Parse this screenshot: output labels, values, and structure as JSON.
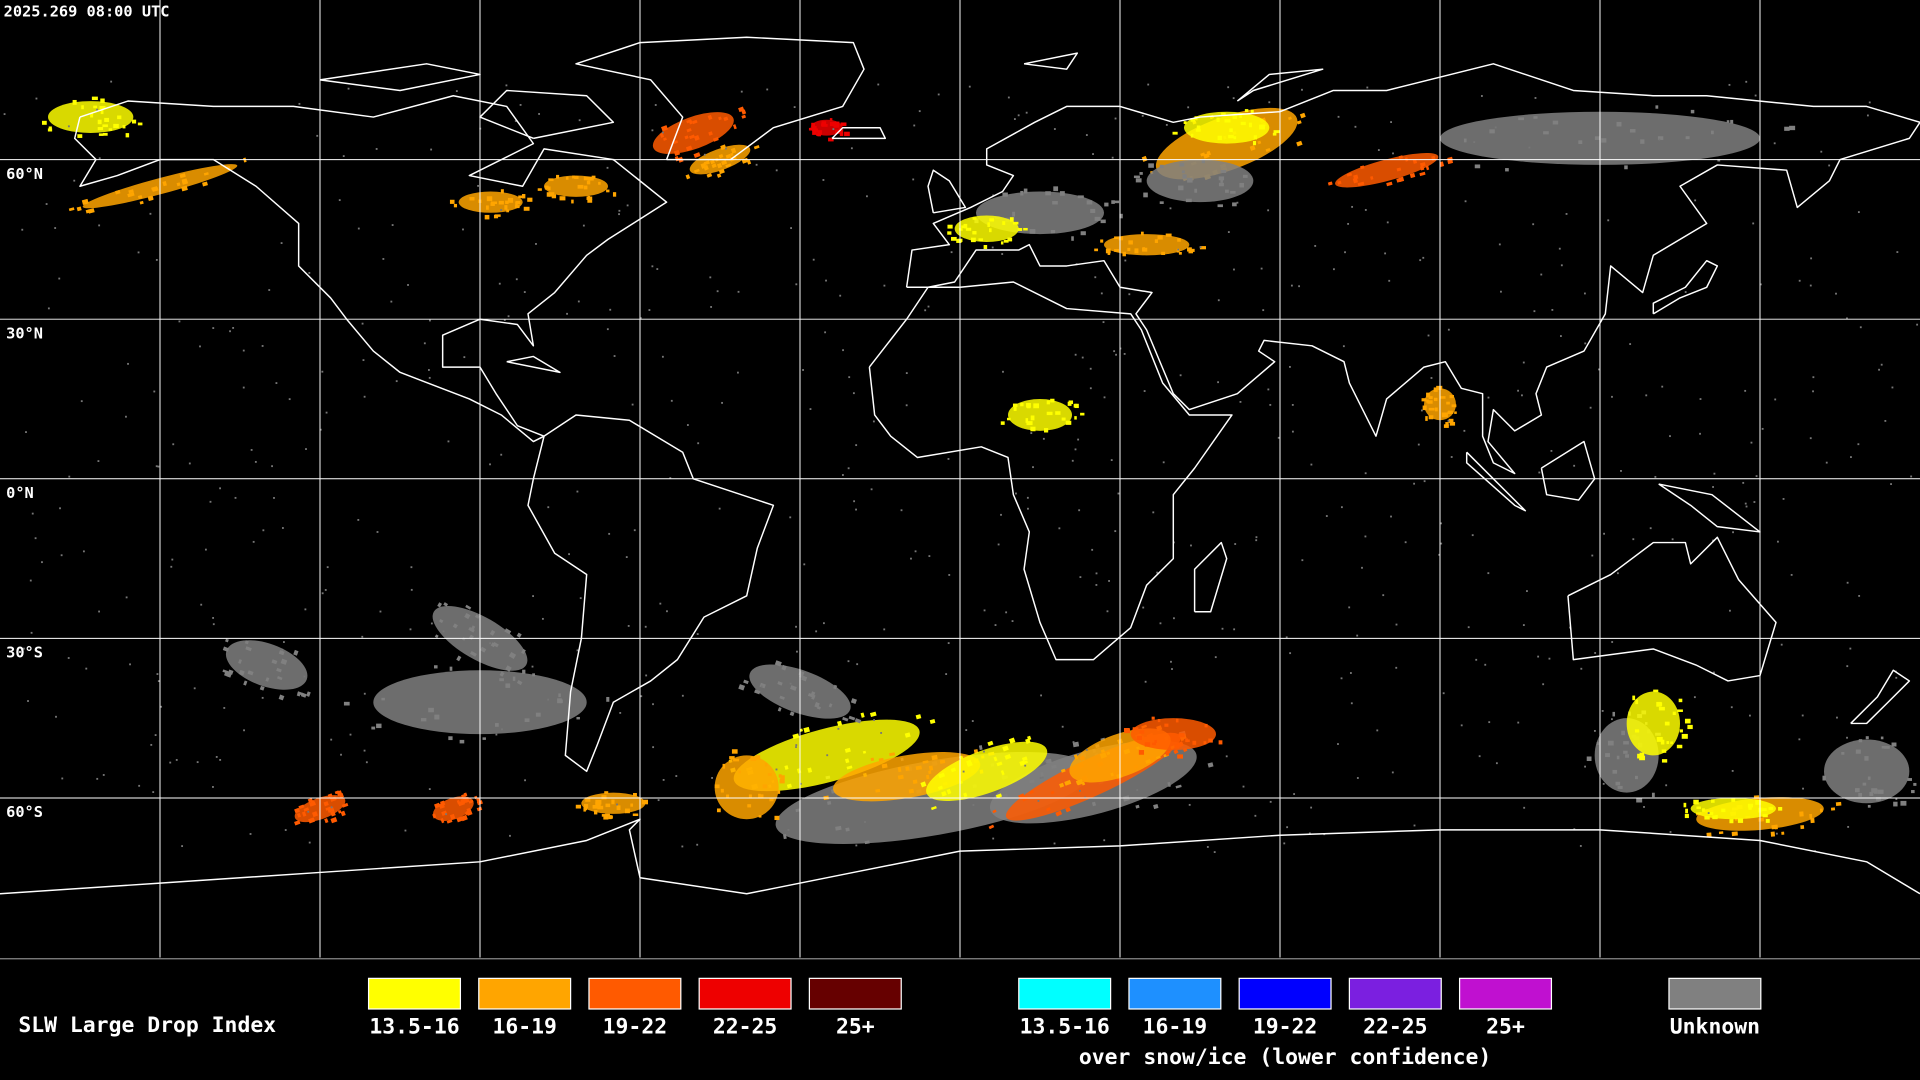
{
  "header": {
    "timestamp": "2025.269 08:00 UTC"
  },
  "map": {
    "latitude_labels": [
      "60°N",
      "30°N",
      "0°N",
      "30°S",
      "60°S"
    ]
  },
  "legend": {
    "title": "SLW Large Drop Index",
    "groups": [
      {
        "items": [
          {
            "label": "13.5-16",
            "color": "#ffff00"
          },
          {
            "label": "16-19",
            "color": "#ffa500"
          },
          {
            "label": "19-22",
            "color": "#ff5a00"
          },
          {
            "label": "22-25",
            "color": "#ee0000"
          },
          {
            "label": "25+",
            "color": "#660000"
          }
        ]
      },
      {
        "items": [
          {
            "label": "13.5-16",
            "color": "#00ffff"
          },
          {
            "label": "16-19",
            "color": "#1e90ff"
          },
          {
            "label": "19-22",
            "color": "#0000ff"
          },
          {
            "label": "22-25",
            "color": "#7b1fe0"
          },
          {
            "label": "25+",
            "color": "#c010d0"
          }
        ],
        "caption": "over snow/ice (lower confidence)"
      },
      {
        "items": [
          {
            "label": "Unknown",
            "color": "#808080"
          }
        ]
      }
    ]
  }
}
